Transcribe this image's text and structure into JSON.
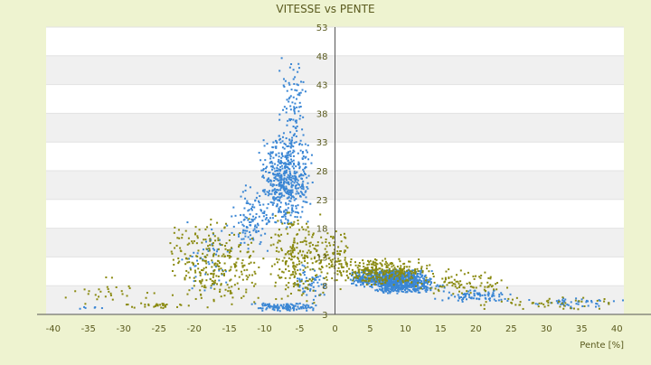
{
  "chart_data": {
    "type": "scatter",
    "title": "VITESSE vs PENTE",
    "xlabel": "Pente [%]",
    "ylabel": "",
    "xlim": [
      -41,
      41
    ],
    "ylim": [
      3,
      53
    ],
    "x_ticks": [
      "-40",
      "-35",
      "-30",
      "-25",
      "-20",
      "-15",
      "-10",
      "-5",
      "0",
      "5",
      "10",
      "15",
      "20",
      "25",
      "30",
      "35",
      "40"
    ],
    "y_ticks": [
      "3",
      "8",
      "13",
      "18",
      "23",
      "28",
      "33",
      "38",
      "43",
      "48",
      "53"
    ],
    "grid": true,
    "legend": "none",
    "colors": {
      "page_background": "#eef3d0",
      "plot_band_light": "#ffffff",
      "plot_band_dark": "#f0f0f0",
      "axis": "#555555",
      "text": "#5a5a1e"
    },
    "series": [
      {
        "color": "#3a86d4",
        "clusters": [
          {
            "x": [
              -11,
              -3
            ],
            "y": [
              18,
              35
            ],
            "n": 520
          },
          {
            "x": [
              -8,
              -4
            ],
            "y": [
              30,
              48
            ],
            "n": 90
          },
          {
            "x": [
              -15,
              -9
            ],
            "y": [
              12,
              26
            ],
            "n": 110
          },
          {
            "x": [
              -22,
              -14
            ],
            "y": [
              6,
              20
            ],
            "n": 60
          },
          {
            "x": [
              -6,
              -1
            ],
            "y": [
              5,
              12
            ],
            "n": 60
          },
          {
            "x": [
              2,
              14
            ],
            "y": [
              7.5,
              11
            ],
            "n": 700
          },
          {
            "x": [
              4,
              16
            ],
            "y": [
              6.5,
              9
            ],
            "n": 220
          },
          {
            "x": [
              14,
              26
            ],
            "y": [
              5,
              7.5
            ],
            "n": 90
          },
          {
            "x": [
              25,
              41
            ],
            "y": [
              4,
              6
            ],
            "n": 50
          },
          {
            "x": [
              -12,
              -2
            ],
            "y": [
              3.5,
              5
            ],
            "n": 110
          },
          {
            "x": [
              -41,
              -30
            ],
            "y": [
              3.8,
              4.5
            ],
            "n": 6
          }
        ]
      },
      {
        "color": "#8a8a10",
        "clusters": [
          {
            "x": [
              -24,
              -10
            ],
            "y": [
              4,
              20
            ],
            "n": 280
          },
          {
            "x": [
              -10,
              -1
            ],
            "y": [
              4,
              22
            ],
            "n": 220
          },
          {
            "x": [
              -3,
              3
            ],
            "y": [
              7,
              18
            ],
            "n": 110
          },
          {
            "x": [
              0,
              14
            ],
            "y": [
              8,
              13
            ],
            "n": 280
          },
          {
            "x": [
              10,
              26
            ],
            "y": [
              6,
              11
            ],
            "n": 90
          },
          {
            "x": [
              -40,
              -25
            ],
            "y": [
              4,
              10
            ],
            "n": 30
          },
          {
            "x": [
              20,
              41
            ],
            "y": [
              3.8,
              6
            ],
            "n": 50
          },
          {
            "x": [
              -30,
              -20
            ],
            "y": [
              4,
              5
            ],
            "n": 30
          }
        ]
      }
    ]
  }
}
